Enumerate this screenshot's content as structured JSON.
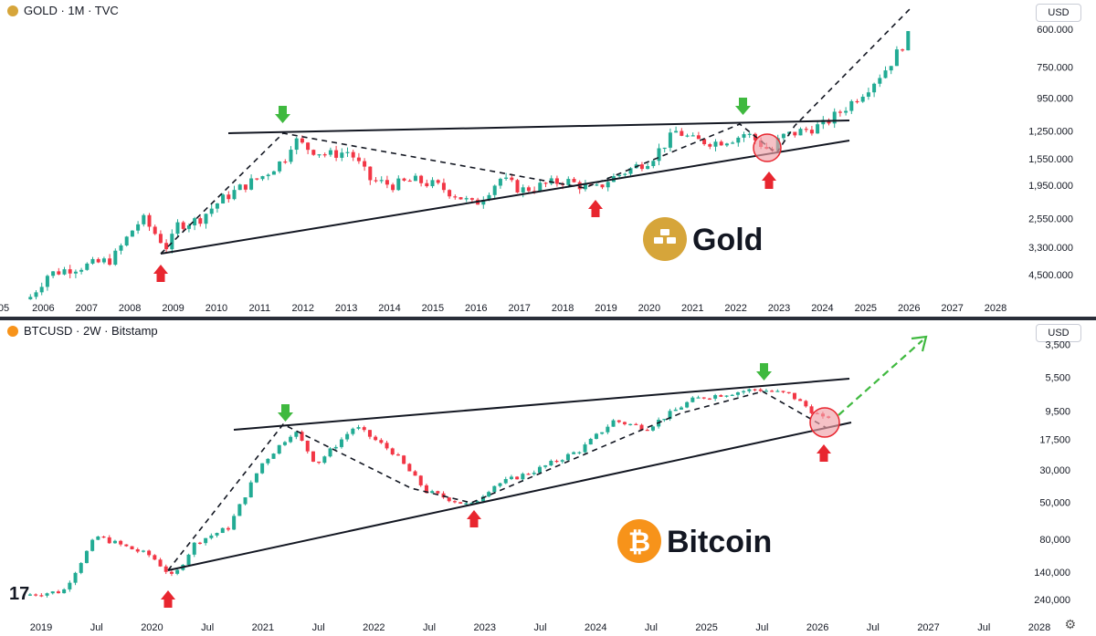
{
  "gold": {
    "legend": "GOLD · 1M · TVC",
    "currency": "USD",
    "brand": "Gold",
    "icon_color": "#d6a53a",
    "y_ticks": [
      "4,500.000",
      "3,300.000",
      "2,550.000",
      "1,950.000",
      "1,550.000",
      "1,250.000",
      "950.000",
      "750.000",
      "600.000"
    ],
    "x_ticks": [
      "05",
      "2006",
      "2007",
      "2008",
      "2009",
      "2010",
      "2011",
      "2012",
      "2013",
      "2014",
      "2015",
      "2016",
      "2017",
      "2018",
      "2019",
      "2020",
      "2021",
      "2022",
      "2023",
      "2024",
      "2025",
      "2026",
      "2027",
      "2028"
    ]
  },
  "btc": {
    "legend": "BTCUSD · 2W · Bitstamp",
    "currency": "USD",
    "brand": "Bitcoin",
    "icon_color": "#f7931a",
    "y_ticks": [
      "240,000",
      "140,000",
      "80,000",
      "50,000",
      "30,000",
      "17,500",
      "9,500",
      "5,500",
      "3,500"
    ],
    "x_ticks": [
      "2019",
      "Jul",
      "2020",
      "Jul",
      "2021",
      "Jul",
      "2022",
      "Jul",
      "2023",
      "Jul",
      "2024",
      "Jul",
      "2025",
      "Jul",
      "2026",
      "Jul",
      "2027",
      "Jul",
      "2028"
    ]
  },
  "colors": {
    "up": "#22ab94",
    "down": "#f23645",
    "green_arrow": "#3fb93f",
    "red_arrow": "#e8262f",
    "circle": "#f0a0a8"
  },
  "chart_data": [
    {
      "type": "candlestick",
      "title": "GOLD · 1M · TVC",
      "log_scale": true,
      "x": [
        2005.6,
        2006.0,
        2006.5,
        2007.0,
        2007.5,
        2008.0,
        2008.2,
        2008.8,
        2009.0,
        2009.5,
        2010.0,
        2010.5,
        2011.0,
        2011.5,
        2011.7,
        2012.0,
        2012.5,
        2013.0,
        2013.5,
        2014.0,
        2014.5,
        2015.0,
        2015.5,
        2015.9,
        2016.5,
        2017.0,
        2017.5,
        2018.0,
        2018.7,
        2019.0,
        2019.5,
        2020.0,
        2020.6,
        2021.0,
        2021.5,
        2022.0,
        2022.2,
        2022.8,
        2023.0,
        2023.5,
        2024.0,
        2024.5,
        2025.0,
        2025.5,
        2026.0,
        2026.1
      ],
      "close": [
        500,
        600,
        630,
        650,
        680,
        880,
        950,
        740,
        900,
        940,
        1100,
        1230,
        1350,
        1550,
        1830,
        1700,
        1600,
        1650,
        1300,
        1250,
        1300,
        1250,
        1150,
        1060,
        1320,
        1200,
        1250,
        1300,
        1200,
        1300,
        1420,
        1550,
        1950,
        1800,
        1780,
        1850,
        1920,
        1640,
        1850,
        1950,
        2050,
        2350,
        2750,
        3300,
        4300,
        5000
      ],
      "ylim": [
        520,
        5300
      ],
      "y_ticks": [
        600,
        750,
        950,
        1250,
        1550,
        1950,
        2550,
        3300,
        4500
      ]
    },
    {
      "type": "candlestick",
      "title": "BTCUSD · 2W · Bitstamp",
      "log_scale": true,
      "x": [
        2018.9,
        2019.2,
        2019.5,
        2019.8,
        2020.0,
        2020.2,
        2020.4,
        2020.7,
        2021.0,
        2021.3,
        2021.5,
        2021.85,
        2022.2,
        2022.5,
        2022.9,
        2023.1,
        2023.5,
        2023.9,
        2024.2,
        2024.5,
        2024.9,
        2025.0,
        2025.5,
        2025.8,
        2026.1,
        2026.2
      ],
      "close": [
        3800,
        4000,
        10000,
        8200,
        7200,
        5000,
        9000,
        11500,
        33000,
        58000,
        33000,
        62000,
        40000,
        21000,
        16500,
        23000,
        30000,
        42000,
        68000,
        60000,
        95000,
        100000,
        115000,
        105000,
        70000,
        76000
      ],
      "ylim": [
        3000,
        300000
      ],
      "y_ticks": [
        3500,
        5500,
        9500,
        17500,
        30000,
        50000,
        80000,
        140000,
        240000
      ]
    }
  ]
}
